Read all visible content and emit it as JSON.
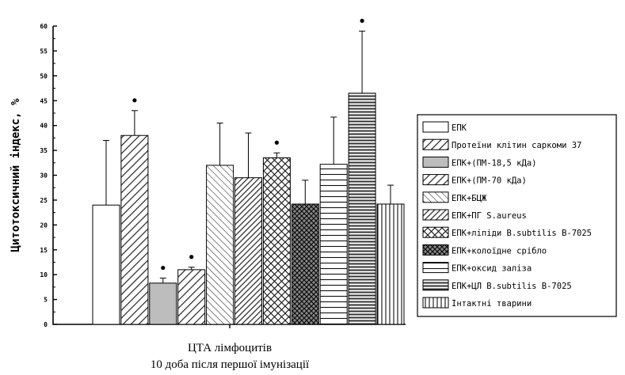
{
  "chart_data": {
    "type": "bar",
    "categories": [
      "ЦТА лімфоцитів"
    ],
    "xlabel": [
      "ЦТА лімфоцитів",
      "10 доба після першої імунізації"
    ],
    "ylabel": "Цитотоксичний індекс, %",
    "ylim": [
      0,
      60
    ],
    "yticks": [
      0,
      5,
      10,
      15,
      20,
      25,
      30,
      35,
      40,
      45,
      50,
      55,
      60
    ],
    "grid": false,
    "legend_position": "right",
    "series": [
      {
        "name": "ЕПК",
        "value": 24,
        "error": 13,
        "significant": false,
        "pattern": "none"
      },
      {
        "name": "Протеїни клітин саркоми 37",
        "value": 38,
        "error": 5,
        "significant": true,
        "pattern": "diag-wide"
      },
      {
        "name": "ЕПК+(ПМ-18,5 кДа)",
        "value": 8.3,
        "error": 1,
        "significant": true,
        "pattern": "solid-gray"
      },
      {
        "name": "ЕПК+(ПМ-70 кДа)",
        "value": 11,
        "error": 0.5,
        "significant": true,
        "pattern": "diag-wide"
      },
      {
        "name": "ЕПК+БЦЖ",
        "value": 32,
        "error": 8.5,
        "significant": false,
        "pattern": "backdiag"
      },
      {
        "name": "ЕПК+ПГ S.aureus",
        "value": 29.5,
        "error": 9,
        "significant": false,
        "pattern": "diag-dense"
      },
      {
        "name": "ЕПК+ліпіди B.subtilis B-7025",
        "value": 33.5,
        "error": 1,
        "significant": true,
        "pattern": "crosshatch"
      },
      {
        "name": "ЕПК+колоїдне срібло",
        "value": 24.2,
        "error": 4.8,
        "significant": false,
        "pattern": "crosshatch-dense"
      },
      {
        "name": "ЕПК+оксид заліза",
        "value": 32.2,
        "error": 9.5,
        "significant": false,
        "pattern": "horizontal"
      },
      {
        "name": "ЕПК+ЦЛ B.subtilis B-7025",
        "value": 46.5,
        "error": 12.5,
        "significant": true,
        "pattern": "horizontal-dense"
      },
      {
        "name": "Інтактні тварини",
        "value": 24.2,
        "error": 3.8,
        "significant": false,
        "pattern": "vertical"
      }
    ],
    "colors": {
      "axis": "#000000",
      "bar_stroke": "#000000",
      "solid_gray": "#bdbdbd"
    }
  }
}
